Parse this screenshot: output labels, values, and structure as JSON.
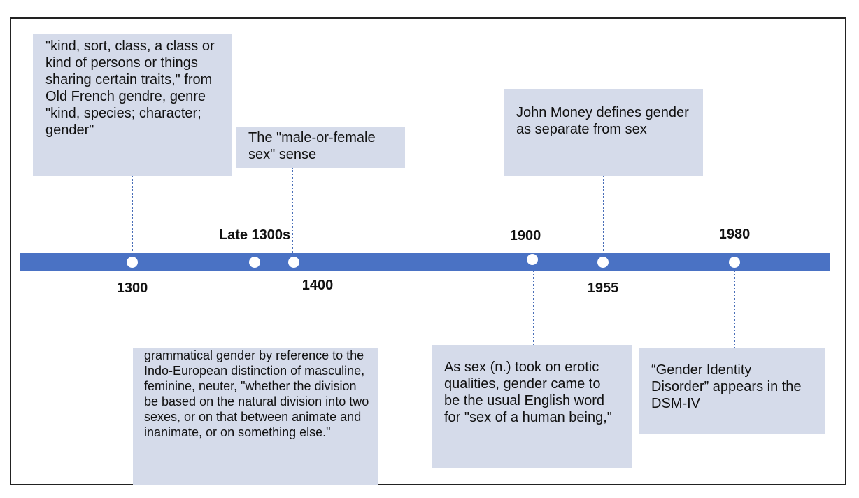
{
  "colors": {
    "bar": "#4a72c4",
    "box": "#d5dbea",
    "dot": "#ffffff",
    "connector": "#4a6fb8"
  },
  "years": {
    "y1300": "1300",
    "late1300s": "Late 1300s",
    "y1400": "1400",
    "y1900": "1900",
    "y1955": "1955",
    "y1980": "1980"
  },
  "events": {
    "origin": "\"kind, sort, class, a class or kind of persons or things sharing certain traits,\" from Old French gendre, genre \"kind, species; character; gender\"",
    "sex_sense": "The \"male-or-female sex\" sense",
    "money": "John Money defines gender as separate from sex",
    "grammatical": "grammatical gender by reference to the Indo-European distinction of masculine, feminine, neuter, \"whether the division be based on the natural division into two sexes, or on that between animate and inanimate, or on something else.\"",
    "erotic": "As sex (n.) took on erotic qualities, gender came to be the usual English word for \"sex of a human being,\"",
    "dsm": "“Gender Identity Disorder” appears in the DSM-IV"
  }
}
